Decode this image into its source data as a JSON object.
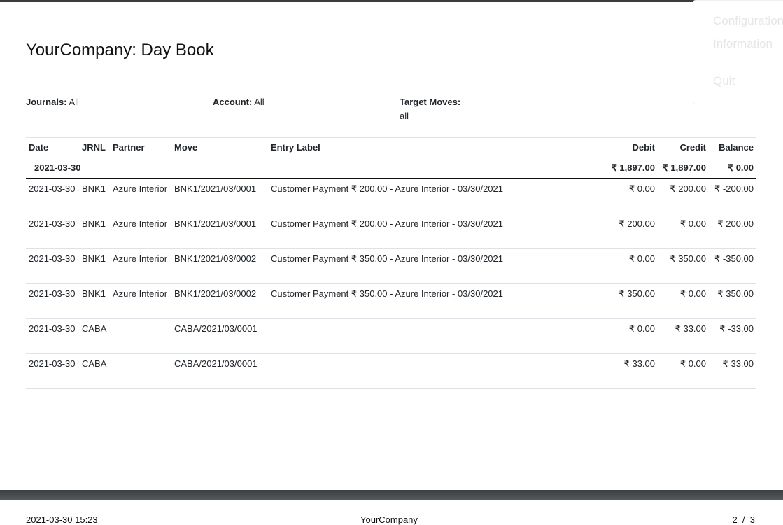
{
  "report": {
    "title": "YourCompany: Day Book",
    "filters": {
      "journals_label": "Journals:",
      "journals_value": "All",
      "account_label": "Account:",
      "account_value": "All",
      "target_label": "Target Moves:",
      "target_value": "all"
    }
  },
  "table": {
    "headers": [
      "Date",
      "JRNL",
      "Partner",
      "Move",
      "Entry Label",
      "Debit",
      "Credit",
      "Balance"
    ],
    "group": {
      "date": "2021-03-30",
      "debit": "₹ 1,897.00",
      "credit": "₹ 1,897.00",
      "balance": "₹ 0.00"
    },
    "rows": [
      {
        "date": "2021-03-30",
        "jrnl": "BNK1",
        "partner": "Azure Interior",
        "move": "BNK1/2021/03/0001",
        "label": "Customer Payment ₹ 200.00 - Azure Interior - 03/30/2021",
        "debit": "₹ 0.00",
        "credit": "₹ 200.00",
        "balance": "₹ -200.00"
      },
      {
        "date": "2021-03-30",
        "jrnl": "BNK1",
        "partner": "Azure Interior",
        "move": "BNK1/2021/03/0001",
        "label": "Customer Payment ₹ 200.00 - Azure Interior - 03/30/2021",
        "debit": "₹ 200.00",
        "credit": "₹ 0.00",
        "balance": "₹ 200.00"
      },
      {
        "date": "2021-03-30",
        "jrnl": "BNK1",
        "partner": "Azure Interior",
        "move": "BNK1/2021/03/0002",
        "label": "Customer Payment ₹ 350.00 - Azure Interior - 03/30/2021",
        "debit": "₹ 0.00",
        "credit": "₹ 350.00",
        "balance": "₹ -350.00"
      },
      {
        "date": "2021-03-30",
        "jrnl": "BNK1",
        "partner": "Azure Interior",
        "move": "BNK1/2021/03/0002",
        "label": "Customer Payment ₹ 350.00 - Azure Interior - 03/30/2021",
        "debit": "₹ 350.00",
        "credit": "₹ 0.00",
        "balance": "₹ 350.00"
      },
      {
        "date": "2021-03-30",
        "jrnl": "CABA",
        "partner": "",
        "move": "CABA/2021/03/0001",
        "label": "",
        "debit": "₹ 0.00",
        "credit": "₹ 33.00",
        "balance": "₹ -33.00"
      },
      {
        "date": "2021-03-30",
        "jrnl": "CABA",
        "partner": "",
        "move": "CABA/2021/03/0001",
        "label": "",
        "debit": "₹ 33.00",
        "credit": "₹ 0.00",
        "balance": "₹ 33.00"
      }
    ]
  },
  "footer": {
    "datetime": "2021-03-30 15:23",
    "company": "YourCompany",
    "page": "2  /  3"
  },
  "menu": {
    "items": [
      "Configuration",
      "Information",
      "Quit"
    ]
  }
}
